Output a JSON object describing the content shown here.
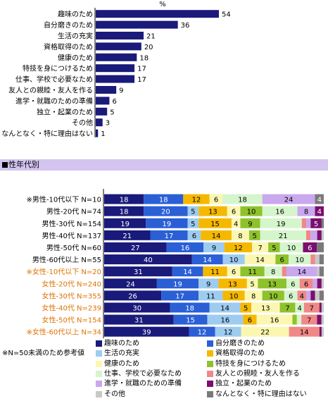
{
  "chart_data": [
    {
      "type": "bar",
      "orientation": "horizontal",
      "unit": "%",
      "categories": [
        "趣味のため",
        "自分磨きのため",
        "生活の充実",
        "資格取得のため",
        "健康のため",
        "特技を身につけるため",
        "仕事、学校で必要なため",
        "友人との親睦・友人を作る",
        "進学・就職のための準備",
        "独立・起業のため",
        "その他",
        "なんとなく・特に理由はない"
      ],
      "values": [
        54,
        36,
        21,
        20,
        18,
        17,
        17,
        9,
        6,
        5,
        3,
        1
      ],
      "bar_color": "#1a1a7a",
      "xlim": [
        0,
        54
      ]
    },
    {
      "type": "bar",
      "orientation": "horizontal",
      "stacked": true,
      "normalized": true,
      "categories": [
        "※男性-10代以下 N=10",
        "男性-20代 N=74",
        "男性-30代 N=154",
        "男性-40代 N=137",
        "男性-50代 N=60",
        "男性-60代以上 N=55",
        "※女性-10代以下 N=20",
        "女性-20代 N=240",
        "女性-30代 N=355",
        "女性-40代 N=239",
        "女性-50代 N=154",
        "※女性-60代以上 N=34"
      ],
      "category_colors": [
        "#000000",
        "#000000",
        "#000000",
        "#000000",
        "#000000",
        "#000000",
        "#e07000",
        "#e07000",
        "#e07000",
        "#e07000",
        "#e07000",
        "#e07000"
      ],
      "series": [
        {
          "name": "趣味のため",
          "color": "#1a1a7a",
          "values": [
            18,
            18,
            19,
            21,
            27,
            40,
            31,
            24,
            26,
            30,
            31,
            39
          ]
        },
        {
          "name": "自分磨きのため",
          "color": "#2a5fd6",
          "values": [
            18,
            20,
            19,
            17,
            16,
            14,
            14,
            19,
            17,
            18,
            15,
            12
          ]
        },
        {
          "name": "生活の充実",
          "color": "#9ecbf0",
          "values": [
            0,
            5,
            5,
            6,
            9,
            10,
            0,
            9,
            11,
            14,
            16,
            12
          ]
        },
        {
          "name": "資格取得のため",
          "color": "#f5b800",
          "values": [
            12,
            13,
            15,
            14,
            12,
            0,
            11,
            13,
            10,
            5,
            6,
            0
          ]
        },
        {
          "name": "健康のため",
          "color": "#fbf7b0",
          "values": [
            6,
            6,
            4,
            8,
            7,
            14,
            6,
            5,
            8,
            13,
            16,
            22
          ]
        },
        {
          "name": "特技を身につけるため",
          "color": "#8ec22c",
          "values": [
            0,
            10,
            9,
            5,
            5,
            6,
            11,
            13,
            10,
            7,
            2,
            0
          ]
        },
        {
          "name": "仕事、学校で必要なため",
          "color": "#d5f5cc",
          "values": [
            18,
            16,
            19,
            21,
            10,
            10,
            8,
            6,
            6,
            4,
            2,
            0
          ]
        },
        {
          "name": "友人との親睦・友人を作る",
          "color": "#f08888",
          "values": [
            0,
            0,
            2,
            2,
            0,
            2,
            2,
            6,
            4,
            7,
            7,
            14
          ]
        },
        {
          "name": "進学・就職のための準備",
          "color": "#c9a8ee",
          "values": [
            24,
            8,
            2,
            3,
            0,
            0,
            14,
            2,
            2,
            0,
            0,
            0
          ]
        },
        {
          "name": "独立・起業のため",
          "color": "#7a0f6e",
          "values": [
            0,
            4,
            5,
            2,
            6,
            0,
            0,
            2,
            2,
            1,
            2,
            1
          ]
        },
        {
          "name": "その他",
          "color": "#c8c8c8",
          "values": [
            0,
            0,
            0,
            1,
            0,
            2,
            1,
            1,
            2,
            1,
            1,
            1
          ]
        },
        {
          "name": "なんとなく・特に理由はない",
          "color": "#7a7a7a",
          "values": [
            4,
            0,
            1,
            0,
            3,
            2,
            2,
            0,
            2,
            0,
            0,
            0
          ]
        }
      ],
      "label_min": 4
    }
  ],
  "section_header": "性年代別",
  "note": "※N=50未満のため参考値"
}
